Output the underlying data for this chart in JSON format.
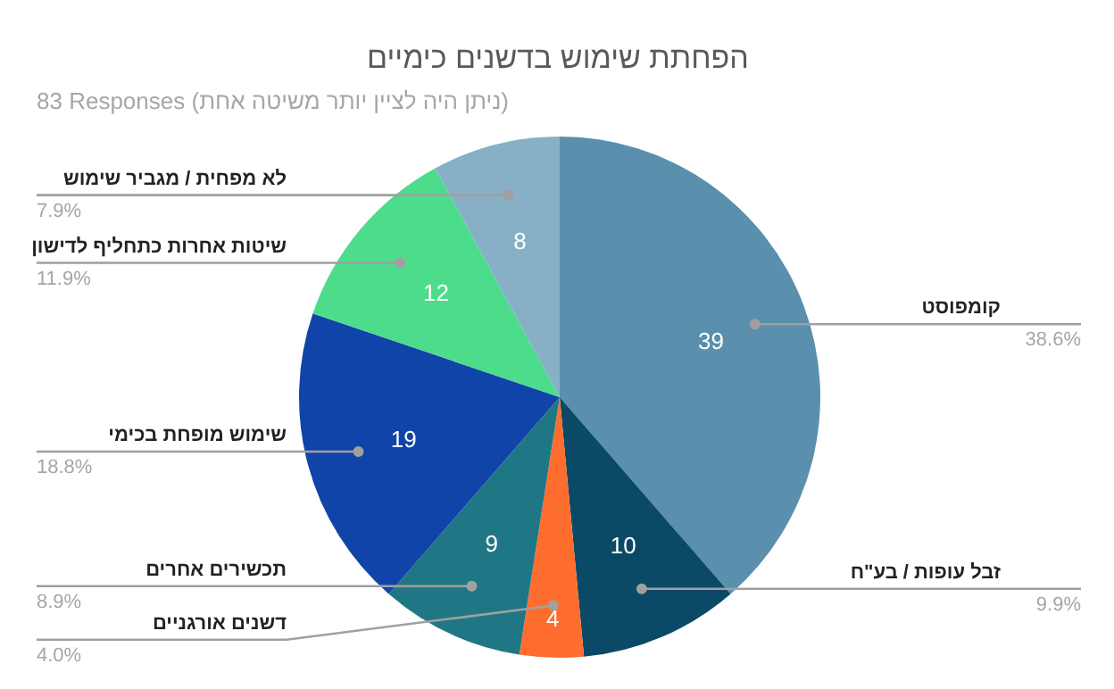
{
  "chart_data": {
    "type": "pie",
    "title": "הפחתת שימוש בדשנים כימיים",
    "subtitle": "83 Responses (ניתן היה לציין יותר משיטה אחת)",
    "categories": [
      "קומפוסט",
      "זבל עופות / בע\"ח",
      "דשנים אורגניים",
      "תכשירים אחרים",
      "שימוש מופחת בכימי",
      "שיטות אחרות כתחליף לדישון",
      "לא מפחית / מגביר שימוש"
    ],
    "values": [
      39,
      10,
      4,
      9,
      19,
      12,
      8
    ],
    "colors": [
      "#5a8fad",
      "#0b4a66",
      "#ff6d2e",
      "#1f7785",
      "#1044a8",
      "#4cdc8c",
      "#87b0c6"
    ],
    "data_labels": true,
    "annotations": [
      "38.6%",
      "9.9%",
      "4.0%",
      "8.9%",
      "18.8%",
      "11.9%",
      "7.9%"
    ]
  }
}
